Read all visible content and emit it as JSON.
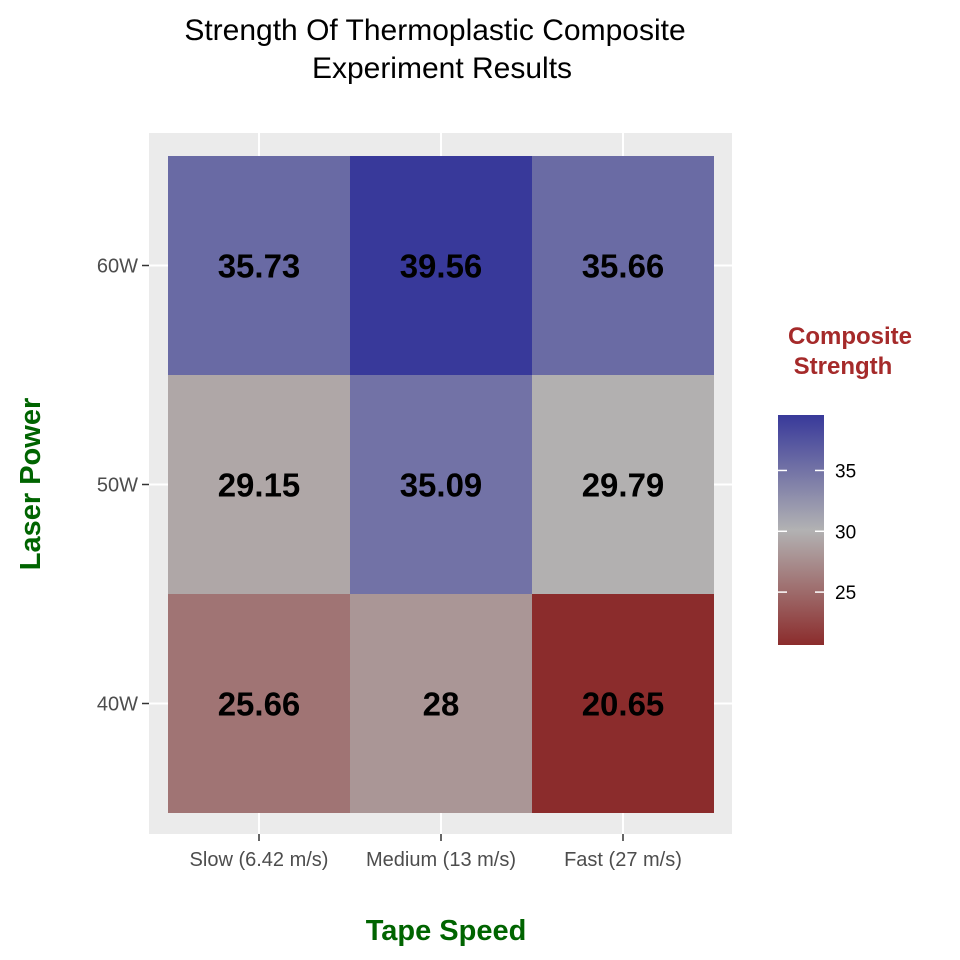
{
  "chart_data": {
    "type": "heatmap",
    "title_lines": [
      "Strength Of Thermoplastic Composite",
      "Experiment Results"
    ],
    "xlabel": "Tape Speed",
    "ylabel": "Laser Power",
    "x_categories": [
      "Slow (6.42 m/s)",
      "Medium (13 m/s)",
      "Fast (27 m/s)"
    ],
    "y_categories": [
      "40W",
      "50W",
      "60W"
    ],
    "cells": [
      {
        "x": "Slow (6.42 m/s)",
        "y": "60W",
        "value": 35.73,
        "label": "35.73"
      },
      {
        "x": "Medium (13 m/s)",
        "y": "60W",
        "value": 39.56,
        "label": "39.56"
      },
      {
        "x": "Fast (27 m/s)",
        "y": "60W",
        "value": 35.66,
        "label": "35.66"
      },
      {
        "x": "Slow (6.42 m/s)",
        "y": "50W",
        "value": 29.15,
        "label": "29.15"
      },
      {
        "x": "Medium (13 m/s)",
        "y": "50W",
        "value": 35.09,
        "label": "35.09"
      },
      {
        "x": "Fast (27 m/s)",
        "y": "50W",
        "value": 29.79,
        "label": "29.79"
      },
      {
        "x": "Slow (6.42 m/s)",
        "y": "40W",
        "value": 25.66,
        "label": "25.66"
      },
      {
        "x": "Medium (13 m/s)",
        "y": "40W",
        "value": 28,
        "label": "28"
      },
      {
        "x": "Fast (27 m/s)",
        "y": "40W",
        "value": 20.65,
        "label": "20.65"
      }
    ],
    "legend": {
      "title_lines": [
        "Composite",
        "Strength"
      ],
      "range": [
        20.65,
        39.56
      ],
      "ticks": [
        25,
        30,
        35
      ],
      "tick_labels": [
        "25",
        "30",
        "35"
      ],
      "placement": "right"
    },
    "colors": {
      "low": "#8b2c2c",
      "mid": "#b3b3b3",
      "high": "#38399a",
      "midpoint": 30,
      "panel": "#ebebeb",
      "grid": "#ffffff"
    }
  }
}
